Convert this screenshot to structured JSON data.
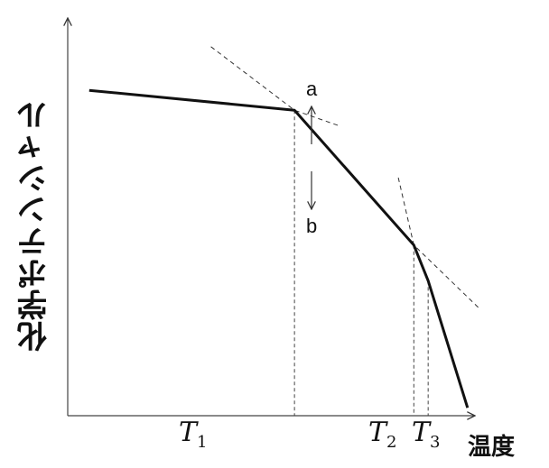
{
  "chart_data": {
    "type": "line",
    "title": "",
    "ylabel": "化学ポテンシャル",
    "xlabel": "温度",
    "x_ticks": [
      {
        "base": "T",
        "sub": "1",
        "x": 1
      },
      {
        "base": "T",
        "sub": "2",
        "x": 2
      },
      {
        "base": "T",
        "sub": "3",
        "x": 2.12
      }
    ],
    "series": [
      {
        "style": "solid",
        "x": [
          -0.72,
          1,
          2,
          2.12,
          2.45
        ],
        "y": [
          0.82,
          0.77,
          0.43,
          0.34,
          0.02
        ]
      }
    ],
    "tangent_lines": [
      {
        "style": "dashed",
        "x": [
          0.3,
          1,
          1.38
        ],
        "y": [
          0.93,
          0.77,
          0.73
        ]
      },
      {
        "style": "dashed",
        "x": [
          1.87,
          2,
          2.55
        ],
        "y": [
          0.6,
          0.43,
          0.27
        ]
      }
    ],
    "annotations": [
      {
        "label": "a",
        "arrow": "up"
      },
      {
        "label": "b",
        "arrow": "down"
      }
    ],
    "xlim": [
      -0.9,
      2.55
    ],
    "ylim": [
      0,
      1
    ],
    "grid": false
  }
}
